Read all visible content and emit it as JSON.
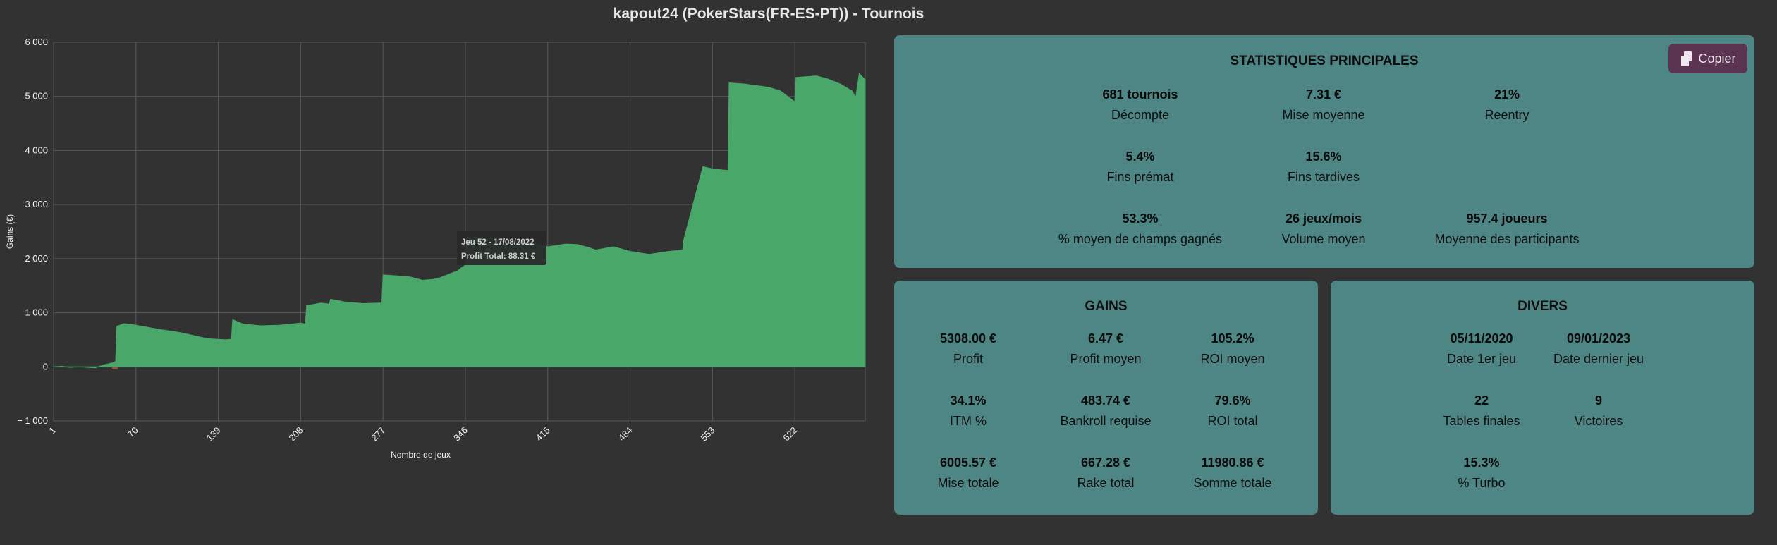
{
  "page_title": "kapout24 (PokerStars(FR-ES-PT)) - Tournois",
  "chart_data": {
    "type": "area",
    "xlabel": "Nombre de jeux",
    "ylabel": "Gains (€)",
    "xlim": [
      1,
      681
    ],
    "ylim": [
      -1000,
      6000
    ],
    "x_ticks": [
      "1",
      "70",
      "139",
      "208",
      "277",
      "346",
      "415",
      "484",
      "553",
      "622"
    ],
    "y_ticks": [
      "6 000",
      "5 000",
      "4 000",
      "3 000",
      "2 000",
      "1 000",
      "0",
      "− 1 000"
    ],
    "grid": true,
    "colors": {
      "area_positive": "#4aa76a",
      "area_negative": "#d04040",
      "grid": "#5a5a5a"
    },
    "series": [
      {
        "x": [
          1,
          8,
          15,
          22,
          30,
          36,
          42,
          50,
          53,
          54,
          60,
          70,
          80,
          90,
          100,
          110,
          120,
          130,
          145,
          150,
          151,
          160,
          175,
          190,
          200,
          208,
          212,
          213,
          225,
          232,
          233,
          245,
          260,
          275,
          276,
          277,
          290,
          300,
          310,
          320,
          325,
          340,
          342,
          346,
          347,
          360,
          380,
          400,
          415,
          430,
          440,
          450,
          455,
          470,
          485,
          500,
          515,
          528,
          529,
          545,
          553,
          566,
          567,
          580,
          600,
          610,
          622,
          623,
          640,
          650,
          660,
          670,
          673,
          676,
          681
        ],
        "values": [
          0,
          10,
          -10,
          0,
          -10,
          -20,
          30,
          70,
          100,
          750,
          800,
          770,
          730,
          690,
          660,
          620,
          570,
          520,
          500,
          510,
          870,
          790,
          760,
          770,
          790,
          810,
          790,
          1130,
          1180,
          1160,
          1250,
          1200,
          1170,
          1180,
          1200,
          1700,
          1680,
          1660,
          1600,
          1620,
          1650,
          1780,
          1820,
          1880,
          2400,
          2380,
          2350,
          2300,
          2220,
          2270,
          2260,
          2200,
          2160,
          2220,
          2130,
          2080,
          2130,
          2160,
          2350,
          3700,
          3660,
          3630,
          5250,
          5230,
          5170,
          5100,
          4900,
          5350,
          5380,
          5320,
          5230,
          5100,
          4980,
          5420,
          5308
        ]
      }
    ]
  },
  "tooltip": {
    "line1": "Jeu 52 - 17/08/2022",
    "line2": "Profit Total: 88.31 €"
  },
  "copy_button": {
    "label": "Copier",
    "icon": "copy-icon"
  },
  "main_stats": {
    "title": "STATISTIQUES PRINCIPALES",
    "items": [
      {
        "value": "681 tournois",
        "label": "Décompte"
      },
      {
        "value": "7.31 €",
        "label": "Mise moyenne"
      },
      {
        "value": "21%",
        "label": "Reentry"
      },
      {
        "value": "5.4%",
        "label": "Fins prémat"
      },
      {
        "value": "15.6%",
        "label": "Fins tardives"
      },
      {
        "value": "53.3%",
        "label": "% moyen de champs gagnés"
      },
      {
        "value": "26 jeux/mois",
        "label": "Volume moyen"
      },
      {
        "value": "957.4 joueurs",
        "label": "Moyenne des participants"
      }
    ]
  },
  "gains": {
    "title": "GAINS",
    "items": [
      {
        "value": "5308.00 €",
        "label": "Profit"
      },
      {
        "value": "6.47 €",
        "label": "Profit moyen"
      },
      {
        "value": "105.2%",
        "label": "ROI moyen"
      },
      {
        "value": "34.1%",
        "label": "ITM %"
      },
      {
        "value": "483.74 €",
        "label": "Bankroll requise"
      },
      {
        "value": "79.6%",
        "label": "ROI total"
      },
      {
        "value": "6005.57 €",
        "label": "Mise totale"
      },
      {
        "value": "667.28 €",
        "label": "Rake total"
      },
      {
        "value": "11980.86 €",
        "label": "Somme totale"
      }
    ]
  },
  "divers": {
    "title": "DIVERS",
    "items": [
      {
        "value": "05/11/2020",
        "label": "Date 1er jeu"
      },
      {
        "value": "09/01/2023",
        "label": "Date dernier jeu"
      },
      {
        "value": "22",
        "label": "Tables finales"
      },
      {
        "value": "9",
        "label": "Victoires"
      },
      {
        "value": "15.3%",
        "label": "% Turbo"
      }
    ]
  },
  "colors": {
    "background": "#323232",
    "panel": "#4e8585",
    "button": "#5a3450"
  }
}
